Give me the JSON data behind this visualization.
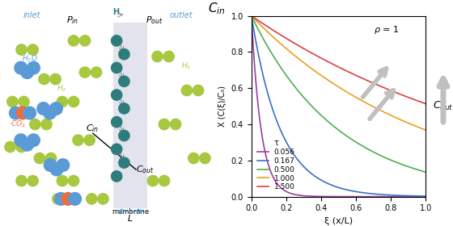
{
  "title": "",
  "xlabel": "ξ (x/L)",
  "ylabel": "X (C(ξ)/C₀)",
  "xlim": [
    0.0,
    1.0
  ],
  "ylim": [
    0.0,
    1.0
  ],
  "rho": 1,
  "tau_values": [
    0.056,
    0.167,
    0.5,
    1.0,
    1.5
  ],
  "line_colors": [
    "#9B3BA4",
    "#3A6EC8",
    "#4CAF50",
    "#E8A020",
    "#D94040"
  ],
  "legend_title": "τ",
  "legend_labels": [
    "0.056",
    "0.167",
    "0.500",
    "1.000",
    "1.500"
  ],
  "bg_color": "#ffffff",
  "h2_color": "#a8c840",
  "blue_color": "#5b9bd5",
  "orange_color": "#e87040",
  "teal_color": "#2d7d7d"
}
